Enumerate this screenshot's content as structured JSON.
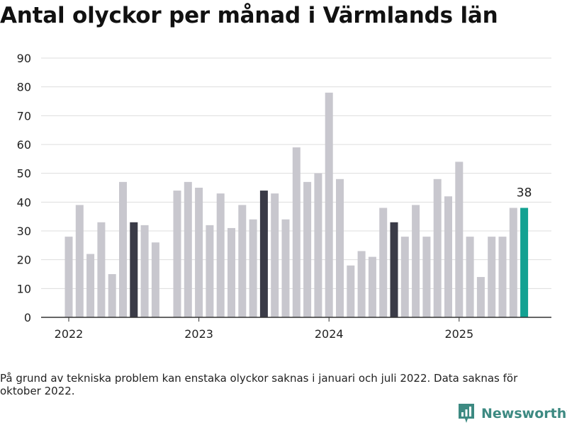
{
  "title": "Antal olyckor per månad i Värmlands län",
  "footnote": "På grund av tekniska problem kan enstaka olyckor saknas i januari och juli 2022. Data saknas för oktober 2022.",
  "brand": {
    "name": "Newsworthy",
    "logo_icon": "newsworthy-bar-chart-logo-icon"
  },
  "colors": {
    "bar": "#c8c7ce",
    "highlight": "#3a3b47",
    "latest": "#13a192",
    "grid": "#dddddd",
    "axis": "#333333",
    "text": "#222222",
    "brand": "#3d8a82"
  },
  "chart_data": {
    "type": "bar",
    "x": [
      "2022-01",
      "2022-02",
      "2022-03",
      "2022-04",
      "2022-05",
      "2022-06",
      "2022-07",
      "2022-08",
      "2022-09",
      "2022-10",
      "2022-11",
      "2022-12",
      "2023-01",
      "2023-02",
      "2023-03",
      "2023-04",
      "2023-05",
      "2023-06",
      "2023-07",
      "2023-08",
      "2023-09",
      "2023-10",
      "2023-11",
      "2023-12",
      "2024-01",
      "2024-02",
      "2024-03",
      "2024-04",
      "2024-05",
      "2024-06",
      "2024-07",
      "2024-08",
      "2024-09",
      "2024-10",
      "2024-11",
      "2024-12",
      "2025-01",
      "2025-02",
      "2025-03",
      "2025-04",
      "2025-05",
      "2025-06",
      "2025-07"
    ],
    "values": [
      28,
      39,
      22,
      33,
      15,
      47,
      33,
      32,
      26,
      null,
      44,
      47,
      45,
      32,
      43,
      31,
      39,
      34,
      44,
      43,
      34,
      59,
      47,
      50,
      78,
      48,
      18,
      23,
      21,
      38,
      33,
      28,
      39,
      28,
      48,
      42,
      54,
      28,
      14,
      28,
      28,
      38,
      38
    ],
    "highlight_months": [
      "2022-07",
      "2023-07",
      "2024-07"
    ],
    "latest": "2025-07",
    "latest_label": "38",
    "x_ticks": [
      "2022",
      "2023",
      "2024",
      "2025"
    ],
    "y_ticks": [
      0,
      10,
      20,
      30,
      40,
      50,
      60,
      70,
      80,
      90
    ],
    "ylim": [
      0,
      90
    ],
    "grid": true,
    "title": "Antal olyckor per månad i Värmlands län",
    "xlabel": "",
    "ylabel": ""
  }
}
